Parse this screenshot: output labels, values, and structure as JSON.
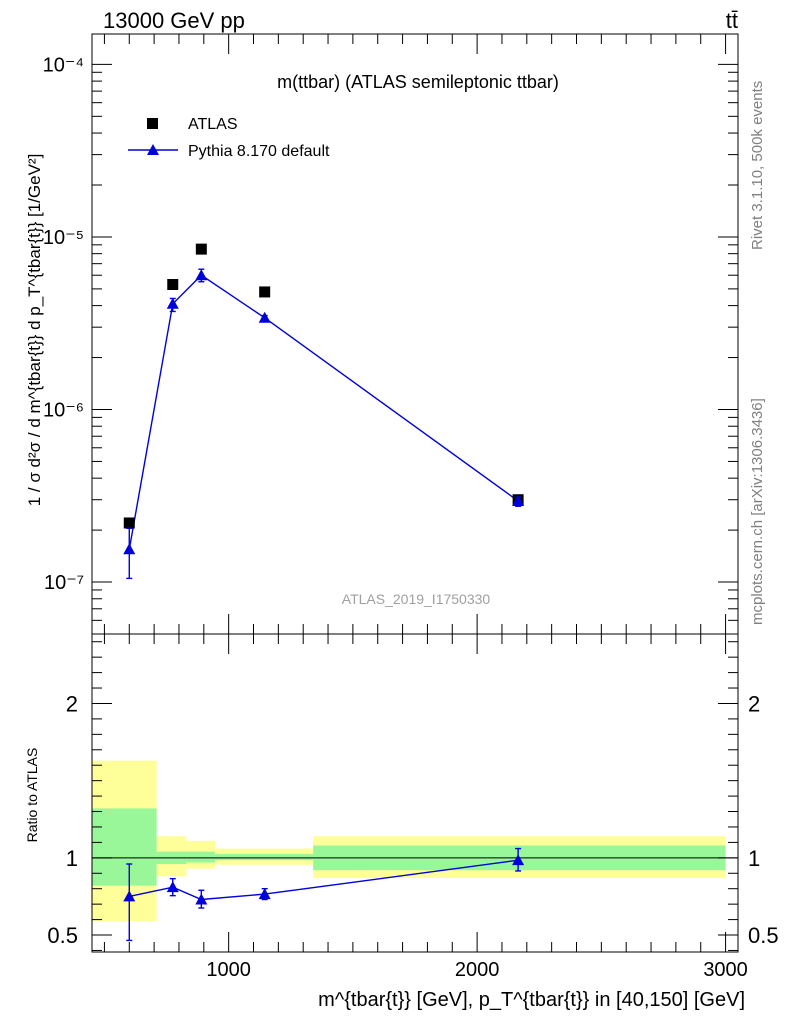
{
  "header": {
    "energy": "13000 GeV pp",
    "process": "tt̄"
  },
  "side_labels": {
    "rivet": "Rivet 3.1.10,  500k events",
    "mcplots": "mcplots.cern.ch [arXiv:1306.3436]"
  },
  "chart_data": [
    {
      "type": "scatter",
      "panel": "main",
      "title": "m(ttbar) (ATLAS semileptonic ttbar)",
      "analysis_label": "ATLAS_2019_I1750330",
      "ylabel": "1 / σ d²σ / d m^{tbar{t}} d p_T^{tbar{t}} [1/GeV²]",
      "yscale": "log",
      "ylim": [
        5e-08,
        0.00015
      ],
      "xlim": [
        450,
        3050
      ],
      "ytick_labels": [
        "10⁻⁷",
        "10⁻⁶",
        "10⁻⁵",
        "10⁻⁴"
      ],
      "ytick_values": [
        1e-07,
        1e-06,
        1e-05,
        0.0001
      ],
      "legend": {
        "position": "top-left",
        "entries": [
          "ATLAS",
          "Pythia 8.170 default"
        ]
      },
      "series": [
        {
          "name": "ATLAS",
          "marker": "square",
          "color": "#000000",
          "x": [
            600,
            775,
            890,
            1145,
            2165
          ],
          "y": [
            2.2e-07,
            5.3e-06,
            8.5e-06,
            4.8e-06,
            3e-07
          ],
          "x_bins": [
            [
              450,
              710
            ],
            [
              710,
              830
            ],
            [
              830,
              945
            ],
            [
              945,
              1340
            ],
            [
              1340,
              3000
            ]
          ]
        },
        {
          "name": "Pythia 8.170 default",
          "marker": "triangle",
          "color": "#0000dd",
          "x": [
            600,
            775,
            890,
            1145,
            2165
          ],
          "y": [
            1.55e-07,
            4.1e-06,
            6e-06,
            3.4e-06,
            2.95e-07
          ],
          "y_err_low": [
            1.05e-07,
            3.7e-06,
            5.5e-06,
            3.3e-06,
            2.75e-07
          ],
          "y_err_high": [
            2.05e-07,
            4.4e-06,
            6.5e-06,
            3.5e-06,
            3.1e-07
          ]
        }
      ]
    },
    {
      "type": "scatter",
      "panel": "ratio",
      "ylabel": "Ratio to ATLAS",
      "xlabel": "m^{tbar{t}} [GeV], p_T^{tbar{t}} in [40,150] [GeV]",
      "ylim": [
        0.39,
        2.45
      ],
      "xlim": [
        450,
        3050
      ],
      "xtick_values": [
        1000,
        2000,
        3000
      ],
      "xtick_labels": [
        "1000",
        "2000",
        "3000"
      ],
      "ytick_values": [
        0.5,
        1,
        2
      ],
      "ytick_labels": [
        "0.5",
        "1",
        "2"
      ],
      "bands": {
        "bins": [
          [
            450,
            710
          ],
          [
            710,
            830
          ],
          [
            830,
            945
          ],
          [
            945,
            1340
          ],
          [
            1340,
            3000
          ]
        ],
        "stat_low": [
          0.82,
          0.96,
          0.97,
          0.985,
          0.92
        ],
        "stat_high": [
          1.32,
          1.04,
          1.04,
          1.025,
          1.08
        ],
        "total_low": [
          0.59,
          0.88,
          0.93,
          0.955,
          0.87
        ],
        "total_high": [
          1.63,
          1.14,
          1.11,
          1.06,
          1.14
        ],
        "stat_color": "#99f799",
        "total_color": "#ffff99"
      },
      "series": [
        {
          "name": "Pythia 8.170 default",
          "color": "#0000dd",
          "x": [
            600,
            775,
            890,
            1145,
            2165
          ],
          "y": [
            0.75,
            0.81,
            0.73,
            0.765,
            0.985
          ],
          "y_err_low": [
            0.465,
            0.755,
            0.675,
            0.73,
            0.915
          ],
          "y_err_high": [
            0.96,
            0.865,
            0.79,
            0.8,
            1.06
          ]
        }
      ]
    }
  ]
}
